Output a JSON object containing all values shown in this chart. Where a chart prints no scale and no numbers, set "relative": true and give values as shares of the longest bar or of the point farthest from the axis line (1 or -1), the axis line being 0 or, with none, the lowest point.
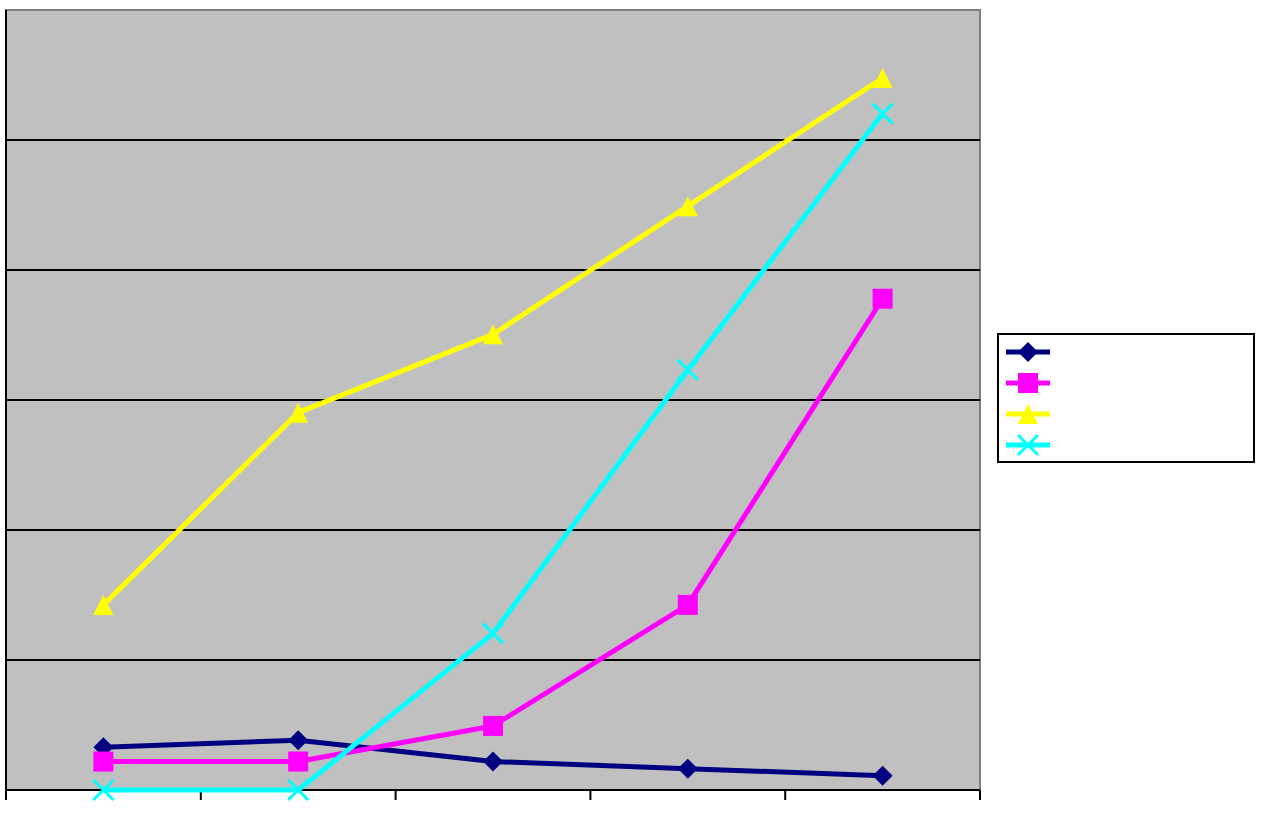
{
  "chart_data": {
    "type": "line",
    "relative": true,
    "categories": [
      null,
      null,
      null,
      null,
      null
    ],
    "grid": true,
    "series": [
      {
        "color": "#000080",
        "marker": "diamond",
        "values": [
          0.06,
          0.07,
          0.04,
          0.03,
          0.02
        ]
      },
      {
        "color": "#ff00ff",
        "marker": "square",
        "values": [
          0.04,
          0.04,
          0.09,
          0.26,
          0.69
        ]
      },
      {
        "color": "#ffff00",
        "marker": "triangle",
        "values": [
          0.26,
          0.53,
          0.64,
          0.82,
          1
        ]
      },
      {
        "color": "#00ffff",
        "marker": "cross",
        "values": [
          0,
          0,
          0.22,
          0.59,
          0.95
        ]
      }
    ]
  }
}
